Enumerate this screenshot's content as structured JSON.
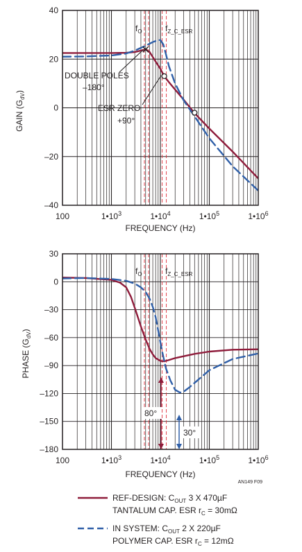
{
  "figure_id": "AN149 F09",
  "colors": {
    "ref_design": "#8e1b3a",
    "in_system": "#2f5fa8",
    "marker_lines": "#e0303a",
    "grid": "#231f20",
    "background": "#ffffff"
  },
  "legend": {
    "ref": {
      "line1": "REF-DESIGN: C",
      "sub1": "OUT",
      "tail1": " 3 X 470µF",
      "line2": "TANTALUM CAP. ESR r",
      "sub2": "C",
      "tail2": " = 30mΩ"
    },
    "sys": {
      "line1": "IN SYSTEM: C",
      "sub1": "OUT",
      "tail1": " 2 X 220µF",
      "line2": "POLYMER CAP. ESR r",
      "sub2": "C",
      "tail2": " = 12mΩ"
    }
  },
  "chart_data": [
    {
      "type": "line",
      "title": "",
      "xlabel": "FREQUENCY (Hz)",
      "ylabel": "GAIN (G",
      "ylabel_sub": "dV",
      "ylabel_tail": ")",
      "xscale": "log",
      "xlim": [
        100,
        1000000
      ],
      "ylim": [
        -40,
        40
      ],
      "yticks": [
        40,
        20,
        0,
        -20,
        -40
      ],
      "xtick_labels": [
        "100",
        "1•10",
        "1•10",
        "1•10",
        "1•10"
      ],
      "xtick_exps": [
        "",
        "3",
        "4",
        "5",
        "6"
      ],
      "grid": true,
      "markers": {
        "f0": 5200,
        "fz_c_esr": 12000,
        "f0_label": "f",
        "f0_sub": "O",
        "fz_label": "f",
        "fz_sub": "Z_C_ESR"
      },
      "annotations": {
        "double_poles": "DOUBLE POLES",
        "double_poles_deg": "–180°",
        "esr_zero": "ESR ZERO",
        "esr_zero_deg": "+90°"
      },
      "series": [
        {
          "name": "REF-DESIGN: COUT 3 X 470µF TANTALUM CAP. ESR rC = 30mΩ",
          "style": "solid",
          "x": [
            100,
            300,
            1000,
            2000,
            3000,
            4000,
            5000,
            6000,
            8000,
            10000,
            12000,
            15000,
            20000,
            30000,
            50000,
            100000,
            300000,
            1000000
          ],
          "y": [
            22.5,
            22.5,
            22.5,
            22.6,
            22.9,
            23.5,
            24.0,
            23.0,
            19.0,
            16.0,
            13.0,
            10.5,
            7.5,
            3.3,
            -2.2,
            -8.5,
            -18.0,
            -29.0
          ]
        },
        {
          "name": "IN SYSTEM: COUT 2 X 220µF POLYMER CAP. ESR rC = 12mΩ",
          "style": "dashed",
          "x": [
            100,
            300,
            1000,
            2000,
            3000,
            5000,
            7000,
            9000,
            10000,
            11500,
            13000,
            15000,
            20000,
            30000,
            50000,
            100000,
            300000,
            1000000
          ],
          "y": [
            21.0,
            21.1,
            21.5,
            22.3,
            23.5,
            25.5,
            27.0,
            27.8,
            27.8,
            26.0,
            22.0,
            17.0,
            10.0,
            3.0,
            -3.5,
            -12.5,
            -24.0,
            -34.0
          ]
        }
      ],
      "points": [
        {
          "x": 5000,
          "y": 24,
          "marker": "x"
        },
        {
          "x": 12000,
          "y": 13,
          "marker": "circle"
        },
        {
          "x": 50000,
          "y": -2,
          "marker": "circle"
        }
      ]
    },
    {
      "type": "line",
      "title": "",
      "xlabel": "FREQUENCY (Hz)",
      "ylabel": "PHASE (G",
      "ylabel_sub": "dV",
      "ylabel_tail": ")",
      "xscale": "log",
      "xlim": [
        100,
        1000000
      ],
      "ylim": [
        -180,
        30
      ],
      "yticks": [
        30,
        0,
        -30,
        -60,
        -90,
        -120,
        -150,
        -180
      ],
      "xtick_labels": [
        "100",
        "1•10",
        "1•10",
        "1•10",
        "1•10"
      ],
      "xtick_exps": [
        "",
        "3",
        "4",
        "5",
        "6"
      ],
      "grid": true,
      "markers": {
        "f0": 5200,
        "fz_c_esr": 12000,
        "f0_label": "f",
        "f0_sub": "O",
        "fz_label": "f",
        "fz_sub": "Z_C_ESR"
      },
      "annotations": {
        "arrow_80": "80°",
        "arrow_30": "30°"
      },
      "series": [
        {
          "name": "REF-DESIGN: COUT 3 X 470µF TANTALUM CAP. ESR rC = 30mΩ",
          "style": "solid",
          "x": [
            100,
            300,
            1000,
            1500,
            2000,
            2500,
            3000,
            4000,
            5000,
            6000,
            7000,
            8000,
            10000,
            12000,
            15000,
            20000,
            30000,
            50000,
            100000,
            300000,
            1000000
          ],
          "y": [
            4.5,
            4.0,
            2.0,
            -1.0,
            -6.0,
            -16.0,
            -28.0,
            -48.0,
            -62.0,
            -72.0,
            -78.0,
            -82.0,
            -85.0,
            -85.5,
            -84.0,
            -82.0,
            -80.0,
            -77.5,
            -75.0,
            -73.0,
            -72.5
          ]
        },
        {
          "name": "IN SYSTEM: COUT 2 X 220µF POLYMER CAP. ESR rC = 12mΩ",
          "style": "dashed",
          "x": [
            100,
            300,
            1000,
            2000,
            3000,
            4000,
            5000,
            6000,
            7000,
            8000,
            9000,
            10000,
            11000,
            13000,
            16000,
            20000,
            25000,
            30000,
            40000,
            60000,
            100000,
            300000,
            1000000
          ],
          "y": [
            3.5,
            4.0,
            3.0,
            1.0,
            -2.0,
            -6.0,
            -11.0,
            -18.0,
            -27.0,
            -38.0,
            -52.0,
            -65.0,
            -76.0,
            -93.0,
            -106.0,
            -116.0,
            -119.0,
            -118.0,
            -113.0,
            -105.0,
            -95.0,
            -83.0,
            -77.0
          ]
        }
      ]
    }
  ]
}
